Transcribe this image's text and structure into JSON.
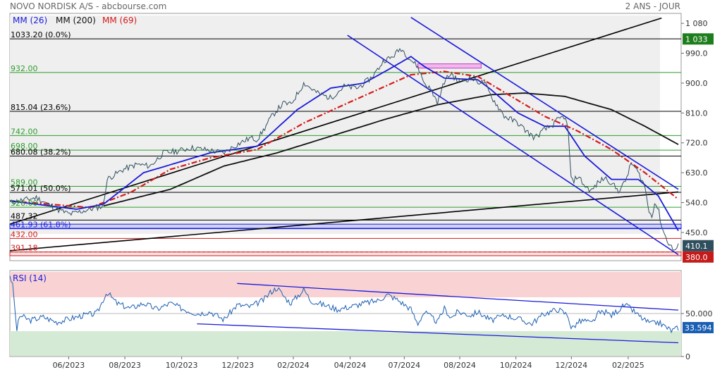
{
  "header": {
    "title": "NOVO NORDISK A/S - abcbourse.com",
    "period": "2 ANS - JOUR"
  },
  "legend": [
    {
      "label": "MM (26)",
      "color": "#1a1adc"
    },
    {
      "label": "MM (200)",
      "color": "#111111"
    },
    {
      "label": "MM (69)",
      "color": "#d41a1a"
    }
  ],
  "colors": {
    "price": "#2f4f5f",
    "channel": "#1a1adc",
    "trendline": "#000000",
    "green_level": "#2e9e2e",
    "red_level": "#d41a1a",
    "zone_blue": "#cfd4f7",
    "zone_red": "#fbe3e3",
    "zone_magenta": "#f1b8ec",
    "panel_bg": "#efefef",
    "rsi_overbought": "#f9d3d3",
    "rsi_oversold": "#d5ead5"
  },
  "chart_data": [
    {
      "type": "line",
      "panel": "price",
      "y_axis_ticks": [
        1080,
        990,
        900,
        810,
        720,
        630,
        540,
        450
      ],
      "ylim": [
        365,
        1110
      ],
      "x_tick_labels": [
        "06/2023",
        "08/2023",
        "10/2023",
        "12/2023",
        "02/2024",
        "04/2024",
        "07/2024",
        "08/2024",
        "10/2024",
        "12/2024",
        "02/2025"
      ],
      "price_series_anchors": [
        {
          "t": 0.0,
          "v": 540
        },
        {
          "t": 0.04,
          "v": 555
        },
        {
          "t": 0.07,
          "v": 520
        },
        {
          "t": 0.09,
          "v": 505
        },
        {
          "t": 0.12,
          "v": 520
        },
        {
          "t": 0.14,
          "v": 530
        },
        {
          "t": 0.145,
          "v": 610
        },
        {
          "t": 0.17,
          "v": 640
        },
        {
          "t": 0.19,
          "v": 655
        },
        {
          "t": 0.21,
          "v": 650
        },
        {
          "t": 0.23,
          "v": 690
        },
        {
          "t": 0.25,
          "v": 695
        },
        {
          "t": 0.27,
          "v": 705
        },
        {
          "t": 0.29,
          "v": 700
        },
        {
          "t": 0.32,
          "v": 690
        },
        {
          "t": 0.34,
          "v": 715
        },
        {
          "t": 0.36,
          "v": 735
        },
        {
          "t": 0.37,
          "v": 730
        },
        {
          "t": 0.38,
          "v": 760
        },
        {
          "t": 0.39,
          "v": 795
        },
        {
          "t": 0.4,
          "v": 820
        },
        {
          "t": 0.41,
          "v": 840
        },
        {
          "t": 0.42,
          "v": 835
        },
        {
          "t": 0.44,
          "v": 900
        },
        {
          "t": 0.46,
          "v": 870
        },
        {
          "t": 0.48,
          "v": 855
        },
        {
          "t": 0.5,
          "v": 890
        },
        {
          "t": 0.52,
          "v": 885
        },
        {
          "t": 0.54,
          "v": 915
        },
        {
          "t": 0.55,
          "v": 940
        },
        {
          "t": 0.56,
          "v": 970
        },
        {
          "t": 0.57,
          "v": 975
        },
        {
          "t": 0.585,
          "v": 1005
        },
        {
          "t": 0.6,
          "v": 970
        },
        {
          "t": 0.61,
          "v": 950
        },
        {
          "t": 0.62,
          "v": 900
        },
        {
          "t": 0.63,
          "v": 880
        },
        {
          "t": 0.64,
          "v": 840
        },
        {
          "t": 0.65,
          "v": 905
        },
        {
          "t": 0.66,
          "v": 930
        },
        {
          "t": 0.67,
          "v": 905
        },
        {
          "t": 0.69,
          "v": 915
        },
        {
          "t": 0.7,
          "v": 905
        },
        {
          "t": 0.71,
          "v": 900
        },
        {
          "t": 0.72,
          "v": 860
        },
        {
          "t": 0.73,
          "v": 830
        },
        {
          "t": 0.74,
          "v": 800
        },
        {
          "t": 0.76,
          "v": 780
        },
        {
          "t": 0.77,
          "v": 760
        },
        {
          "t": 0.785,
          "v": 735
        },
        {
          "t": 0.8,
          "v": 760
        },
        {
          "t": 0.81,
          "v": 770
        },
        {
          "t": 0.82,
          "v": 790
        },
        {
          "t": 0.83,
          "v": 800
        },
        {
          "t": 0.835,
          "v": 760
        },
        {
          "t": 0.84,
          "v": 600
        },
        {
          "t": 0.85,
          "v": 620
        },
        {
          "t": 0.86,
          "v": 590
        },
        {
          "t": 0.87,
          "v": 575
        },
        {
          "t": 0.88,
          "v": 600
        },
        {
          "t": 0.89,
          "v": 615
        },
        {
          "t": 0.9,
          "v": 600
        },
        {
          "t": 0.91,
          "v": 575
        },
        {
          "t": 0.92,
          "v": 600
        },
        {
          "t": 0.93,
          "v": 660
        },
        {
          "t": 0.94,
          "v": 630
        },
        {
          "t": 0.95,
          "v": 590
        },
        {
          "t": 0.955,
          "v": 520
        },
        {
          "t": 0.96,
          "v": 500
        },
        {
          "t": 0.965,
          "v": 540
        },
        {
          "t": 0.97,
          "v": 520
        },
        {
          "t": 0.975,
          "v": 470
        },
        {
          "t": 0.98,
          "v": 440
        },
        {
          "t": 0.985,
          "v": 420
        },
        {
          "t": 0.99,
          "v": 405
        },
        {
          "t": 0.995,
          "v": 395
        },
        {
          "t": 1.0,
          "v": 410.1
        }
      ],
      "mm26_anchors": [
        {
          "t": 0.0,
          "v": 545
        },
        {
          "t": 0.1,
          "v": 520
        },
        {
          "t": 0.14,
          "v": 535
        },
        {
          "t": 0.2,
          "v": 630
        },
        {
          "t": 0.3,
          "v": 690
        },
        {
          "t": 0.37,
          "v": 710
        },
        {
          "t": 0.43,
          "v": 820
        },
        {
          "t": 0.48,
          "v": 885
        },
        {
          "t": 0.53,
          "v": 900
        },
        {
          "t": 0.57,
          "v": 945
        },
        {
          "t": 0.6,
          "v": 980
        },
        {
          "t": 0.62,
          "v": 950
        },
        {
          "t": 0.65,
          "v": 915
        },
        {
          "t": 0.7,
          "v": 910
        },
        {
          "t": 0.72,
          "v": 880
        },
        {
          "t": 0.76,
          "v": 810
        },
        {
          "t": 0.8,
          "v": 770
        },
        {
          "t": 0.83,
          "v": 770
        },
        {
          "t": 0.86,
          "v": 680
        },
        {
          "t": 0.9,
          "v": 610
        },
        {
          "t": 0.94,
          "v": 610
        },
        {
          "t": 0.97,
          "v": 560
        },
        {
          "t": 1.0,
          "v": 455
        }
      ],
      "mm69_anchors": [
        {
          "t": 0.0,
          "v": 545
        },
        {
          "t": 0.12,
          "v": 525
        },
        {
          "t": 0.18,
          "v": 570
        },
        {
          "t": 0.24,
          "v": 640
        },
        {
          "t": 0.3,
          "v": 675
        },
        {
          "t": 0.37,
          "v": 700
        },
        {
          "t": 0.44,
          "v": 780
        },
        {
          "t": 0.5,
          "v": 835
        },
        {
          "t": 0.55,
          "v": 880
        },
        {
          "t": 0.6,
          "v": 925
        },
        {
          "t": 0.65,
          "v": 935
        },
        {
          "t": 0.7,
          "v": 920
        },
        {
          "t": 0.75,
          "v": 860
        },
        {
          "t": 0.8,
          "v": 800
        },
        {
          "t": 0.85,
          "v": 755
        },
        {
          "t": 0.9,
          "v": 700
        },
        {
          "t": 0.95,
          "v": 630
        },
        {
          "t": 1.0,
          "v": 550
        }
      ],
      "mm200_anchors": [
        {
          "t": 0.14,
          "v": 530
        },
        {
          "t": 0.24,
          "v": 580
        },
        {
          "t": 0.32,
          "v": 650
        },
        {
          "t": 0.4,
          "v": 690
        },
        {
          "t": 0.48,
          "v": 740
        },
        {
          "t": 0.56,
          "v": 790
        },
        {
          "t": 0.64,
          "v": 835
        },
        {
          "t": 0.72,
          "v": 865
        },
        {
          "t": 0.77,
          "v": 870
        },
        {
          "t": 0.83,
          "v": 860
        },
        {
          "t": 0.9,
          "v": 820
        },
        {
          "t": 0.95,
          "v": 770
        },
        {
          "t": 1.0,
          "v": 715
        }
      ],
      "levels": [
        {
          "value": 1033.2,
          "label": "1033.20  (0.0%)",
          "color": "black"
        },
        {
          "value": 932,
          "label": "932.00",
          "color": "green"
        },
        {
          "value": 815.04,
          "label": "815.04  (23.6%)",
          "color": "black"
        },
        {
          "value": 742,
          "label": "742.00",
          "color": "green"
        },
        {
          "value": 698,
          "label": "698.00",
          "color": "green"
        },
        {
          "value": 680.08,
          "label": "680.08  (38.2%)",
          "color": "black"
        },
        {
          "value": 589,
          "label": "589.00",
          "color": "green"
        },
        {
          "value": 571.01,
          "label": "571.01  (50.0%)",
          "color": "black"
        },
        {
          "value": 526,
          "label": "526.00",
          "color": "green"
        },
        {
          "value": 487.32,
          "label": "487.32",
          "color": "black"
        },
        {
          "value": 461.93,
          "label": "461.93  (61.8%)",
          "color": "blue"
        },
        {
          "value": 432,
          "label": "432.00",
          "color": "red"
        },
        {
          "value": 391.18,
          "label": "391.18",
          "color": "red"
        }
      ],
      "zones": [
        {
          "from": 461.93,
          "to": 475,
          "color": "blue"
        },
        {
          "from": 380,
          "to": 391.18,
          "color": "red"
        },
        {
          "from": 945,
          "to": 958,
          "t_from": 0.61,
          "t_to": 0.705,
          "color": "magenta"
        }
      ],
      "trendlines": [
        {
          "color": "black",
          "from": {
            "t": 0.0,
            "v": 475
          },
          "to": {
            "t": 0.975,
            "v": 1096
          }
        },
        {
          "color": "black",
          "from": {
            "t": 0.0,
            "v": 395
          },
          "to": {
            "t": 1.0,
            "v": 572
          }
        },
        {
          "color": "blue",
          "from": {
            "t": 0.6,
            "v": 1098
          },
          "to": {
            "t": 1.0,
            "v": 580
          }
        },
        {
          "color": "blue",
          "from": {
            "t": 0.505,
            "v": 1044
          },
          "to": {
            "t": 1.0,
            "v": 383
          }
        }
      ],
      "price_labels": [
        {
          "text": "1 033",
          "value": 1033,
          "color": "#1e7e1e"
        },
        {
          "text": "410.1",
          "value": 410.1,
          "color": "#2f4f5f"
        },
        {
          "text": "380.0",
          "value": 380,
          "color": "#c41a1a"
        }
      ]
    },
    {
      "type": "line",
      "panel": "rsi",
      "name": "RSI (14)",
      "y_axis_ticks": [
        50,
        0
      ],
      "ylim": [
        0,
        100
      ],
      "overbought": 70,
      "oversold": 30,
      "last_value_label": "33.594",
      "rsi_anchors": [
        {
          "t": 0.0,
          "v": 95
        },
        {
          "t": 0.005,
          "v": 80
        },
        {
          "t": 0.01,
          "v": 30
        },
        {
          "t": 0.015,
          "v": 48
        },
        {
          "t": 0.03,
          "v": 42
        },
        {
          "t": 0.05,
          "v": 46
        },
        {
          "t": 0.07,
          "v": 40
        },
        {
          "t": 0.09,
          "v": 44
        },
        {
          "t": 0.11,
          "v": 48
        },
        {
          "t": 0.13,
          "v": 50
        },
        {
          "t": 0.145,
          "v": 75
        },
        {
          "t": 0.16,
          "v": 62
        },
        {
          "t": 0.18,
          "v": 56
        },
        {
          "t": 0.2,
          "v": 62
        },
        {
          "t": 0.22,
          "v": 55
        },
        {
          "t": 0.24,
          "v": 62
        },
        {
          "t": 0.26,
          "v": 55
        },
        {
          "t": 0.28,
          "v": 50
        },
        {
          "t": 0.3,
          "v": 52
        },
        {
          "t": 0.32,
          "v": 43
        },
        {
          "t": 0.34,
          "v": 60
        },
        {
          "t": 0.36,
          "v": 58
        },
        {
          "t": 0.38,
          "v": 66
        },
        {
          "t": 0.39,
          "v": 75
        },
        {
          "t": 0.4,
          "v": 80
        },
        {
          "t": 0.41,
          "v": 70
        },
        {
          "t": 0.42,
          "v": 62
        },
        {
          "t": 0.44,
          "v": 78
        },
        {
          "t": 0.45,
          "v": 65
        },
        {
          "t": 0.47,
          "v": 60
        },
        {
          "t": 0.49,
          "v": 55
        },
        {
          "t": 0.51,
          "v": 58
        },
        {
          "t": 0.53,
          "v": 62
        },
        {
          "t": 0.55,
          "v": 65
        },
        {
          "t": 0.565,
          "v": 72
        },
        {
          "t": 0.58,
          "v": 66
        },
        {
          "t": 0.6,
          "v": 55
        },
        {
          "t": 0.61,
          "v": 38
        },
        {
          "t": 0.62,
          "v": 52
        },
        {
          "t": 0.64,
          "v": 40
        },
        {
          "t": 0.65,
          "v": 56
        },
        {
          "t": 0.66,
          "v": 45
        },
        {
          "t": 0.67,
          "v": 52
        },
        {
          "t": 0.69,
          "v": 48
        },
        {
          "t": 0.7,
          "v": 52
        },
        {
          "t": 0.72,
          "v": 42
        },
        {
          "t": 0.74,
          "v": 48
        },
        {
          "t": 0.76,
          "v": 44
        },
        {
          "t": 0.78,
          "v": 38
        },
        {
          "t": 0.8,
          "v": 50
        },
        {
          "t": 0.82,
          "v": 55
        },
        {
          "t": 0.835,
          "v": 48
        },
        {
          "t": 0.84,
          "v": 32
        },
        {
          "t": 0.85,
          "v": 40
        },
        {
          "t": 0.86,
          "v": 42
        },
        {
          "t": 0.87,
          "v": 38
        },
        {
          "t": 0.88,
          "v": 50
        },
        {
          "t": 0.89,
          "v": 52
        },
        {
          "t": 0.9,
          "v": 48
        },
        {
          "t": 0.92,
          "v": 60
        },
        {
          "t": 0.93,
          "v": 55
        },
        {
          "t": 0.94,
          "v": 48
        },
        {
          "t": 0.95,
          "v": 42
        },
        {
          "t": 0.96,
          "v": 38
        },
        {
          "t": 0.97,
          "v": 40
        },
        {
          "t": 0.98,
          "v": 35
        },
        {
          "t": 0.99,
          "v": 30
        },
        {
          "t": 1.0,
          "v": 33.594
        }
      ],
      "trendlines": [
        {
          "color": "blue",
          "from": {
            "t": 0.34,
            "v": 85
          },
          "to": {
            "t": 1.0,
            "v": 54
          }
        },
        {
          "color": "blue",
          "from": {
            "t": 0.28,
            "v": 38
          },
          "to": {
            "t": 1.0,
            "v": 16
          }
        }
      ]
    }
  ]
}
